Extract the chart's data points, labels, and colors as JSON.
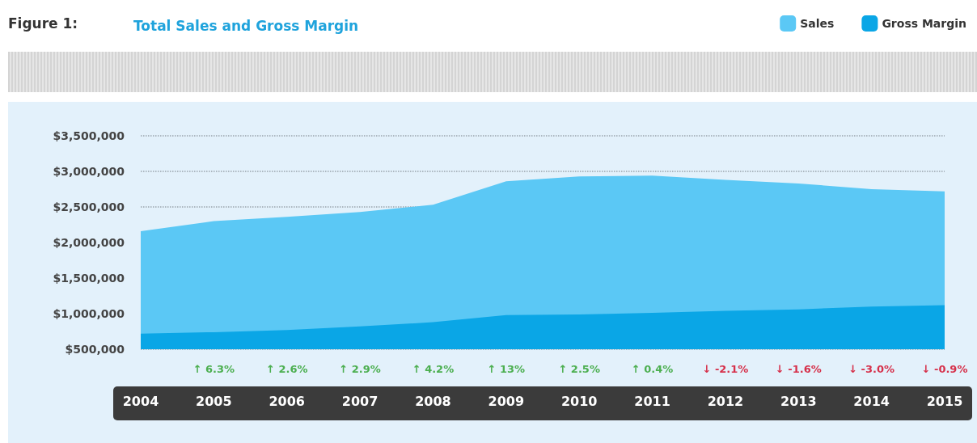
{
  "chart_data": {
    "type": "area",
    "title": "Total Sales and Gross Margin",
    "categories": [
      "2004",
      "2005",
      "2006",
      "2007",
      "2008",
      "2009",
      "2010",
      "2011",
      "2012",
      "2013",
      "2014",
      "2015"
    ],
    "series": [
      {
        "name": "Sales",
        "color": "#5bc8f5",
        "values": [
          2160000,
          2300000,
          2360000,
          2430000,
          2530000,
          2860000,
          2930000,
          2940000,
          2880000,
          2830000,
          2750000,
          2720000
        ]
      },
      {
        "name": "Gross Margin",
        "color": "#0aa6e6",
        "values": [
          720000,
          740000,
          770000,
          820000,
          880000,
          980000,
          990000,
          1010000,
          1040000,
          1060000,
          1100000,
          1120000
        ]
      }
    ],
    "ylim": [
      500000,
      3500000
    ],
    "yticks": [
      {
        "value": 500000,
        "label": "$500,000"
      },
      {
        "value": 1000000,
        "label": "$1,000,000"
      },
      {
        "value": 1500000,
        "label": "$1,500,000"
      },
      {
        "value": 2000000,
        "label": "$2,000,000"
      },
      {
        "value": 2500000,
        "label": "$2,500,000"
      },
      {
        "value": 3000000,
        "label": "$3,000,000"
      },
      {
        "value": 3500000,
        "label": "$3,500,000"
      }
    ],
    "grid": "y",
    "legend": "top right",
    "annotations": [
      "Figure 1:",
      "↑ 6.3%",
      "↑ 2.6%",
      "↑ 2.9%",
      "↑ 4.2%",
      "↑ 13%",
      "↑ 2.5%",
      "↑ 0.4%",
      "↓ -2.1%",
      "↓ -1.6%",
      "↓ -3.0%",
      "↓ -0.9%"
    ]
  }
}
